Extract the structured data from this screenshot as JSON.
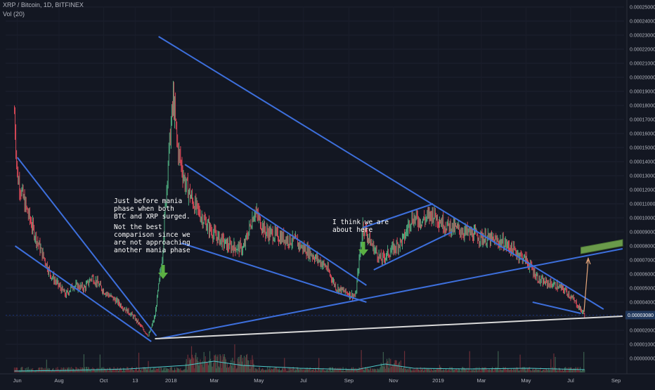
{
  "header": {
    "symbol": "XRP / Bitcoin, 1D, BITFINEX",
    "indicator": "Vol (20)"
  },
  "annotations": {
    "mania_note_1": "Just before mania\nphase when both\nBTC and XRP surged.",
    "mania_note_2": "Not the best\ncomparison since we\nare not approaching\nanother mania phase",
    "current_note": "I think we are\nabout here"
  },
  "colors": {
    "background": "#131722",
    "up_candle": "#53b987",
    "down_candle": "#eb4d5c",
    "trendline": "#3d6fdc",
    "support_line": "#d8d8d8",
    "volume_ma": "#4ec9c9",
    "arrow_green": "#5bb043",
    "target_box": "#6a9a4a",
    "price_label_bg": "#21385c"
  },
  "chart_data": {
    "type": "candlestick",
    "title": "XRP / Bitcoin, 1D, BITFINEX",
    "y_axis": {
      "ylim": [
        0.0,
        0.00025
      ],
      "ticks": [
        "0.00025000",
        "0.00024000",
        "0.00023000",
        "0.00022000",
        "0.00021000",
        "0.00020000",
        "0.00019000",
        "0.00018000",
        "0.00017000",
        "0.00016000",
        "0.00015000",
        "0.00014000",
        "0.00013000",
        "0.00012000",
        "0.00011000",
        "0.00010000",
        "0.00009000",
        "0.00008000",
        "0.00007000",
        "0.00006000",
        "0.00005000",
        "0.00004000",
        "0.00003000",
        "0.00002000",
        "0.00001000",
        "0.00000000"
      ],
      "current_price": "0.00003080"
    },
    "x_axis": {
      "ticks": [
        "Jun",
        "Aug",
        "Oct",
        "13",
        "2018",
        "Mar",
        "May",
        "Jul",
        "Sep",
        "Nov",
        "2019",
        "Mar",
        "May",
        "Jul",
        "Sep"
      ]
    },
    "price_path": [
      [
        "2017-06-01",
        0.000175
      ],
      [
        "2017-06-05",
        0.00013
      ],
      [
        "2017-06-15",
        0.00011
      ],
      [
        "2017-07-01",
        8.5e-05
      ],
      [
        "2017-07-20",
        6e-05
      ],
      [
        "2017-08-10",
        4.5e-05
      ],
      [
        "2017-08-20",
        5.2e-05
      ],
      [
        "2017-09-05",
        5e-05
      ],
      [
        "2017-09-15",
        5.8e-05
      ],
      [
        "2017-10-01",
        4.8e-05
      ],
      [
        "2017-10-20",
        4e-05
      ],
      [
        "2017-11-10",
        3e-05
      ],
      [
        "2017-12-01",
        1.6e-05
      ],
      [
        "2017-12-10",
        3e-05
      ],
      [
        "2017-12-20",
        7.2e-05
      ],
      [
        "2017-12-28",
        0.00014
      ],
      [
        "2018-01-04",
        0.000185
      ],
      [
        "2018-01-10",
        0.00015
      ],
      [
        "2018-01-20",
        0.000125
      ],
      [
        "2018-02-01",
        0.00011
      ],
      [
        "2018-02-15",
        9.8e-05
      ],
      [
        "2018-03-01",
        8.8e-05
      ],
      [
        "2018-03-20",
        8e-05
      ],
      [
        "2018-04-10",
        7.8e-05
      ],
      [
        "2018-04-25",
        0.000105
      ],
      [
        "2018-05-10",
        9e-05
      ],
      [
        "2018-06-01",
        8.6e-05
      ],
      [
        "2018-06-20",
        8.3e-05
      ],
      [
        "2018-07-10",
        7.5e-05
      ],
      [
        "2018-08-01",
        6.5e-05
      ],
      [
        "2018-08-15",
        5e-05
      ],
      [
        "2018-09-01",
        4.6e-05
      ],
      [
        "2018-09-10",
        4.4e-05
      ],
      [
        "2018-09-20",
        9.5e-05
      ],
      [
        "2018-10-01",
        8.2e-05
      ],
      [
        "2018-10-15",
        7e-05
      ],
      [
        "2018-11-01",
        7.8e-05
      ],
      [
        "2018-11-15",
        8.5e-05
      ],
      [
        "2018-11-25",
        0.0001
      ],
      [
        "2018-12-10",
        9.8e-05
      ],
      [
        "2018-12-25",
        0.000103
      ],
      [
        "2019-01-10",
        9.5e-05
      ],
      [
        "2019-02-01",
        9.1e-05
      ],
      [
        "2019-03-01",
        8.6e-05
      ],
      [
        "2019-04-01",
        8.2e-05
      ],
      [
        "2019-05-01",
        7e-05
      ],
      [
        "2019-05-20",
        5.5e-05
      ],
      [
        "2019-06-10",
        5.2e-05
      ],
      [
        "2019-06-25",
        4.8e-05
      ],
      [
        "2019-07-10",
        3.8e-05
      ],
      [
        "2019-07-20",
        3.1e-05
      ]
    ],
    "volume_ma_path": [
      [
        0.0,
        2e-06
      ],
      [
        0.1,
        3e-06
      ],
      [
        0.2,
        5e-06
      ],
      [
        0.3,
        1e-05
      ],
      [
        0.35,
        1.6e-05
      ],
      [
        0.4,
        1e-05
      ],
      [
        0.5,
        6e-06
      ],
      [
        0.6,
        4e-06
      ],
      [
        0.65,
        1.2e-05
      ],
      [
        0.7,
        6e-06
      ],
      [
        0.8,
        5e-06
      ],
      [
        0.9,
        6e-06
      ],
      [
        0.95,
        5e-06
      ],
      [
        1.0,
        4e-06
      ]
    ],
    "drawings": {
      "trendlines": [
        {
          "from": [
            "2017-06-05",
            0.000143
          ],
          "to": [
            "2017-12-12",
            1.6e-05
          ]
        },
        {
          "from": [
            "2017-06-02",
            8e-05
          ],
          "to": [
            "2017-12-05",
            1.2e-05
          ]
        },
        {
          "from": [
            "2017-12-15",
            0.000229
          ],
          "to": [
            "2019-08-15",
            3.5e-05
          ]
        },
        {
          "from": [
            "2017-12-15",
            1.4e-05
          ],
          "to": [
            "2019-09-10",
            7.8e-05
          ]
        },
        {
          "from": [
            "2018-01-15",
            8.2e-05
          ],
          "to": [
            "2018-09-25",
            4e-05
          ]
        },
        {
          "from": [
            "2018-01-20",
            0.000138
          ],
          "to": [
            "2018-09-25",
            5.2e-05
          ]
        },
        {
          "from": [
            "2018-09-20",
            9.3e-05
          ],
          "to": [
            "2018-12-25",
            0.00011
          ]
        },
        {
          "from": [
            "2018-10-05",
            6.3e-05
          ],
          "to": [
            "2019-01-20",
            9e-05
          ]
        },
        {
          "from": [
            "2019-05-10",
            4e-05
          ],
          "to": [
            "2019-07-15",
            3.2e-05
          ]
        }
      ],
      "support": {
        "from": [
          "2017-12-10",
          1.4e-05
        ],
        "to": [
          "2019-09-10",
          3e-05
        ]
      },
      "target_zone": {
        "from": [
          "2019-07-15",
          7.6e-05
        ],
        "to": [
          "2019-09-10",
          8.1e-05
        ]
      }
    }
  }
}
